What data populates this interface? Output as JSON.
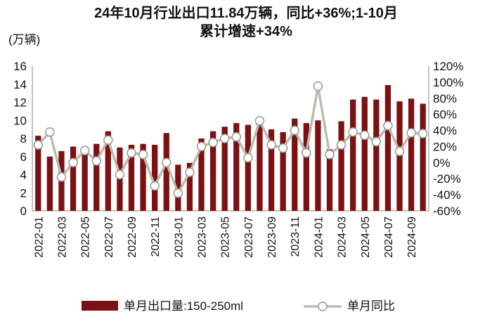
{
  "chart_data": {
    "type": "bar+line",
    "title_line1": "24年10月行业出口11.84万辆，同比+36%;1-10月",
    "title_line2": "累计增速+34%",
    "left_axis_unit": "(万辆)",
    "left_ylim": [
      0,
      16
    ],
    "left_ticks": [
      "16",
      "14",
      "12",
      "10",
      "8",
      "6",
      "4",
      "2",
      "0"
    ],
    "right_ylim": [
      -60,
      120
    ],
    "right_ticks": [
      "120%",
      "100%",
      "80%",
      "60%",
      "40%",
      "20%",
      "0%",
      "-20%",
      "-40%",
      "-60%"
    ],
    "x_tick_labels": [
      "2022-01",
      "2022-03",
      "2022-05",
      "2022-07",
      "2022-09",
      "2022-11",
      "2023-01",
      "2023-03",
      "2023-05",
      "2023-07",
      "2023-09",
      "2023-11",
      "2024-01",
      "2024-03",
      "2024-05",
      "2024-07",
      "2024-09"
    ],
    "categories": [
      "2022-01",
      "2022-02",
      "2022-03",
      "2022-04",
      "2022-05",
      "2022-06",
      "2022-07",
      "2022-08",
      "2022-09",
      "2022-10",
      "2022-11",
      "2022-12",
      "2023-01",
      "2023-02",
      "2023-03",
      "2023-04",
      "2023-05",
      "2023-06",
      "2023-07",
      "2023-08",
      "2023-09",
      "2023-10",
      "2023-11",
      "2023-12",
      "2024-01",
      "2024-02",
      "2024-03",
      "2024-04",
      "2024-05",
      "2024-06",
      "2024-07",
      "2024-08",
      "2024-09",
      "2024-10"
    ],
    "series": [
      {
        "name": "单月出口量:150-250ml",
        "axis": "left",
        "kind": "bar",
        "color": "#7B1113",
        "values": [
          8.3,
          6.0,
          6.6,
          7.1,
          6.9,
          7.4,
          8.8,
          7.0,
          7.3,
          7.4,
          7.3,
          8.6,
          5.1,
          5.3,
          8.0,
          8.8,
          9.3,
          9.7,
          9.5,
          9.6,
          9.0,
          8.7,
          10.2,
          9.7,
          10.0,
          6.8,
          9.9,
          12.3,
          12.6,
          12.3,
          13.9,
          12.1,
          12.4,
          11.84
        ]
      },
      {
        "name": "单月同比",
        "axis": "right",
        "kind": "line",
        "color": "#BDBBAF",
        "values": [
          22,
          38,
          -18,
          0,
          15,
          2,
          28,
          -15,
          12,
          10,
          -29,
          0,
          -38,
          -12,
          20,
          25,
          30,
          32,
          6,
          52,
          22,
          18,
          40,
          12,
          95,
          10,
          22,
          38,
          34,
          26,
          46,
          14,
          37,
          36
        ]
      }
    ],
    "legend_position": "bottom",
    "grid": false
  }
}
